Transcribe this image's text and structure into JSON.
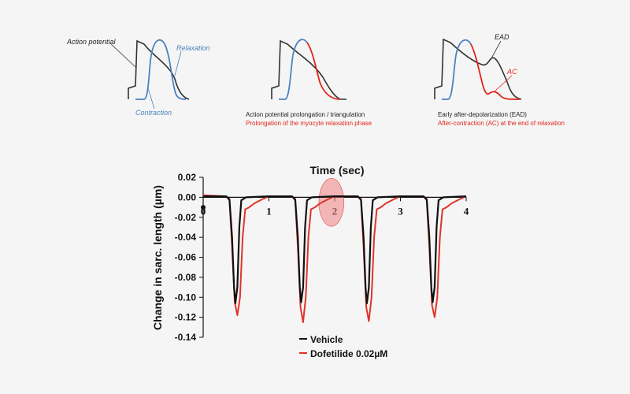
{
  "colors": {
    "background": "#f5f5f5",
    "black": "#333333",
    "blue": "#4a82c0",
    "red": "#e0251b",
    "highlight": "#f08080"
  },
  "schematics": [
    {
      "labels": {
        "action_potential": "Action potential",
        "relaxation": "Relaxation",
        "contraction": "Contraction"
      }
    },
    {
      "caption_line1": "Action potential prolongation / triangulation",
      "caption_line2": "Prolongation of the myocyte relaxation phase"
    },
    {
      "labels": {
        "ead": "EAD",
        "ac": "AC"
      },
      "caption_line1": "Early after-depolarization (EAD)",
      "caption_line2": "After-contraction (AC) at the end of relaxation"
    }
  ],
  "chart_data": {
    "type": "line",
    "title": "Time (sec)",
    "xlabel": "Time (sec)",
    "ylabel": "Change in sarc. length (µm)",
    "xlim": [
      0,
      4
    ],
    "ylim": [
      -0.14,
      0.02
    ],
    "x_ticks": [
      "0",
      "1",
      "2",
      "3",
      "4"
    ],
    "y_ticks": [
      "0.02",
      "0.00",
      "-0.02",
      "-0.04",
      "-0.06",
      "-0.08",
      "-0.10",
      "-0.12",
      "-0.14"
    ],
    "highlight_region": {
      "x_center": 1.95,
      "y_center": -0.005,
      "x_halfwidth": 0.19,
      "y_halfwidth": 0.024
    },
    "series": [
      {
        "name": "Vehicle",
        "color": "#111111",
        "points": [
          [
            0,
            0.001
          ],
          [
            0.35,
            0.001
          ],
          [
            0.4,
            -0.002
          ],
          [
            0.44,
            -0.04
          ],
          [
            0.47,
            -0.09
          ],
          [
            0.49,
            -0.106
          ],
          [
            0.52,
            -0.09
          ],
          [
            0.55,
            -0.03
          ],
          [
            0.58,
            -0.003
          ],
          [
            0.65,
            0
          ],
          [
            1.0,
            0.001
          ],
          [
            1.35,
            0.001
          ],
          [
            1.4,
            -0.002
          ],
          [
            1.44,
            -0.04
          ],
          [
            1.47,
            -0.09
          ],
          [
            1.49,
            -0.105
          ],
          [
            1.52,
            -0.09
          ],
          [
            1.55,
            -0.03
          ],
          [
            1.58,
            -0.003
          ],
          [
            1.65,
            0
          ],
          [
            2.0,
            0.001
          ],
          [
            2.35,
            0.001
          ],
          [
            2.4,
            -0.002
          ],
          [
            2.44,
            -0.04
          ],
          [
            2.47,
            -0.09
          ],
          [
            2.49,
            -0.106
          ],
          [
            2.52,
            -0.09
          ],
          [
            2.55,
            -0.03
          ],
          [
            2.58,
            -0.003
          ],
          [
            2.65,
            0
          ],
          [
            3.0,
            0.001
          ],
          [
            3.35,
            0.001
          ],
          [
            3.4,
            -0.002
          ],
          [
            3.44,
            -0.04
          ],
          [
            3.47,
            -0.09
          ],
          [
            3.49,
            -0.105
          ],
          [
            3.52,
            -0.09
          ],
          [
            3.55,
            -0.03
          ],
          [
            3.58,
            -0.003
          ],
          [
            3.65,
            0
          ],
          [
            4.0,
            0.001
          ]
        ]
      },
      {
        "name": "Dofetilide 0.02µM",
        "color": "#e0342a",
        "points": [
          [
            0,
            0.002
          ],
          [
            0.35,
            0.001
          ],
          [
            0.4,
            -0.003
          ],
          [
            0.44,
            -0.05
          ],
          [
            0.48,
            -0.105
          ],
          [
            0.52,
            -0.118
          ],
          [
            0.56,
            -0.1
          ],
          [
            0.6,
            -0.04
          ],
          [
            0.64,
            -0.012
          ],
          [
            0.7,
            -0.01
          ],
          [
            0.78,
            -0.006
          ],
          [
            0.9,
            -0.002
          ],
          [
            1.0,
            0.001
          ],
          [
            1.35,
            0.001
          ],
          [
            1.4,
            -0.003
          ],
          [
            1.44,
            -0.05
          ],
          [
            1.48,
            -0.11
          ],
          [
            1.52,
            -0.125
          ],
          [
            1.56,
            -0.1
          ],
          [
            1.6,
            -0.04
          ],
          [
            1.64,
            -0.012
          ],
          [
            1.7,
            -0.01
          ],
          [
            1.78,
            -0.006
          ],
          [
            1.9,
            -0.002
          ],
          [
            2.0,
            0.001
          ],
          [
            2.35,
            0.001
          ],
          [
            2.4,
            -0.003
          ],
          [
            2.44,
            -0.05
          ],
          [
            2.48,
            -0.11
          ],
          [
            2.52,
            -0.124
          ],
          [
            2.56,
            -0.1
          ],
          [
            2.6,
            -0.04
          ],
          [
            2.64,
            -0.012
          ],
          [
            2.7,
            -0.01
          ],
          [
            2.78,
            -0.006
          ],
          [
            2.9,
            -0.002
          ],
          [
            3.0,
            0.001
          ],
          [
            3.35,
            0.001
          ],
          [
            3.4,
            -0.003
          ],
          [
            3.44,
            -0.05
          ],
          [
            3.48,
            -0.108
          ],
          [
            3.52,
            -0.12
          ],
          [
            3.56,
            -0.1
          ],
          [
            3.6,
            -0.04
          ],
          [
            3.64,
            -0.012
          ],
          [
            3.7,
            -0.01
          ],
          [
            3.78,
            -0.006
          ],
          [
            3.9,
            -0.002
          ],
          [
            4.0,
            0.001
          ]
        ]
      }
    ],
    "legend_position": "bottom"
  }
}
